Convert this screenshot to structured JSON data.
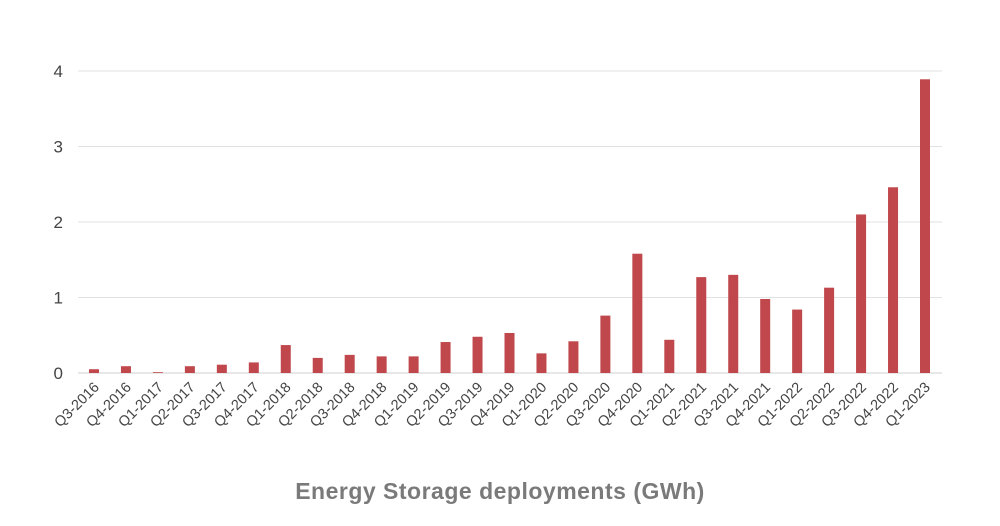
{
  "chart_data": {
    "type": "bar",
    "title": "",
    "xlabel": "Energy Storage deployments (GWh)",
    "ylabel": "",
    "ylim": [
      0,
      4
    ],
    "yticks": [
      0,
      1,
      2,
      3,
      4
    ],
    "grid": true,
    "bar_color": "#c0474b",
    "categories": [
      "Q3-2016",
      "Q4-2016",
      "Q1-2017",
      "Q2-2017",
      "Q3-2017",
      "Q4-2017",
      "Q1-2018",
      "Q2-2018",
      "Q3-2018",
      "Q4-2018",
      "Q1-2019",
      "Q2-2019",
      "Q3-2019",
      "Q4-2019",
      "Q1-2020",
      "Q2-2020",
      "Q3-2020",
      "Q4-2020",
      "Q1-2021",
      "Q2-2021",
      "Q3-2021",
      "Q4-2021",
      "Q1-2022",
      "Q2-2022",
      "Q3-2022",
      "Q4-2022",
      "Q1-2023"
    ],
    "values": [
      0.05,
      0.09,
      0.01,
      0.09,
      0.11,
      0.14,
      0.37,
      0.2,
      0.24,
      0.22,
      0.22,
      0.41,
      0.48,
      0.53,
      0.26,
      0.42,
      0.76,
      1.58,
      0.44,
      1.27,
      1.3,
      0.98,
      0.84,
      1.13,
      2.1,
      2.46,
      3.89
    ]
  }
}
